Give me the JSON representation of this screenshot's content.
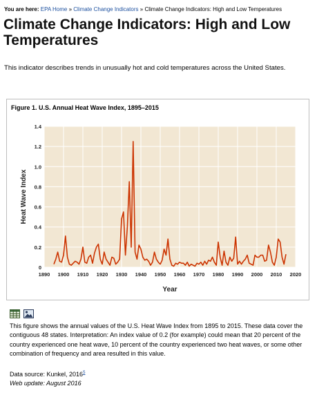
{
  "breadcrumb": {
    "lead": "You are here:",
    "items": [
      {
        "label": "EPA Home"
      },
      {
        "label": "Climate Change Indicators"
      },
      {
        "label": "Climate Change Indicators: High and Low Temperatures"
      }
    ],
    "separator": "»"
  },
  "page": {
    "title": "Climate Change Indicators: High and Low Temperatures",
    "intro": "This indicator describes trends in unusually hot and cold temperatures across the United States."
  },
  "figure": {
    "caption": "Figure 1. U.S. Annual Heat Wave Index, 1895–2015",
    "tools": [
      {
        "icon": "table-icon"
      },
      {
        "icon": "image-icon"
      }
    ],
    "description": "This figure shows the annual values of the U.S. Heat Wave Index from 1895 to 2015. These data cover the contiguous 48 states. Interpretation: An index value of 0.2 (for example) could mean that 20 percent of the country experienced one heat wave, 10 percent of the country experienced two heat waves, or some other combination of frequency and area resulted in this value.",
    "source_label": "Data source: Kunkel, 2016",
    "source_ref": "5",
    "update": "Web update: August 2016"
  },
  "chart_data": {
    "type": "line",
    "title": "",
    "xlabel": "Year",
    "ylabel": "Heat Wave Index",
    "xlim": [
      1890,
      2020
    ],
    "ylim": [
      0,
      1.4
    ],
    "xticks": [
      1890,
      1900,
      1910,
      1920,
      1930,
      1940,
      1950,
      1960,
      1970,
      1980,
      1990,
      2000,
      2010,
      2020
    ],
    "yticks": [
      0,
      0.2,
      0.4,
      0.6,
      0.8,
      1.0,
      1.2,
      1.4
    ],
    "ytick_labels": [
      "0",
      "0.2",
      "0.4",
      "0.6",
      "0.8",
      "1.0",
      "1.2",
      "1.4"
    ],
    "grid": true,
    "colors": {
      "line": "#cc3300",
      "plot_bg": "#f2e7d3",
      "grid": "#ffffff",
      "axis_text": "#222222"
    },
    "series": [
      {
        "x": [
          1895,
          1896,
          1897,
          1898,
          1899,
          1900,
          1901,
          1902,
          1903,
          1904,
          1905,
          1906,
          1907,
          1908,
          1909,
          1910,
          1911,
          1912,
          1913,
          1914,
          1915,
          1916,
          1917,
          1918,
          1919,
          1920,
          1921,
          1922,
          1923,
          1924,
          1925,
          1926,
          1927,
          1928,
          1929,
          1930,
          1931,
          1932,
          1933,
          1934,
          1935,
          1936,
          1937,
          1938,
          1939,
          1940,
          1941,
          1942,
          1943,
          1944,
          1945,
          1946,
          1947,
          1948,
          1949,
          1950,
          1951,
          1952,
          1953,
          1954,
          1955,
          1956,
          1957,
          1958,
          1959,
          1960,
          1961,
          1962,
          1963,
          1964,
          1965,
          1966,
          1967,
          1968,
          1969,
          1970,
          1971,
          1972,
          1973,
          1974,
          1975,
          1976,
          1977,
          1978,
          1979,
          1980,
          1981,
          1982,
          1983,
          1984,
          1985,
          1986,
          1987,
          1988,
          1989,
          1990,
          1991,
          1992,
          1993,
          1994,
          1995,
          1996,
          1997,
          1998,
          1999,
          2000,
          2001,
          2002,
          2003,
          2004,
          2005,
          2006,
          2007,
          2008,
          2009,
          2010,
          2011,
          2012,
          2013,
          2014,
          2015
        ],
        "values": [
          0.03,
          0.08,
          0.15,
          0.06,
          0.05,
          0.12,
          0.31,
          0.1,
          0.03,
          0.02,
          0.04,
          0.06,
          0.05,
          0.03,
          0.08,
          0.2,
          0.05,
          0.04,
          0.1,
          0.12,
          0.04,
          0.14,
          0.2,
          0.23,
          0.08,
          0.03,
          0.15,
          0.08,
          0.05,
          0.02,
          0.1,
          0.09,
          0.03,
          0.05,
          0.08,
          0.48,
          0.55,
          0.12,
          0.4,
          0.85,
          0.2,
          1.25,
          0.15,
          0.08,
          0.22,
          0.18,
          0.1,
          0.07,
          0.08,
          0.06,
          0.02,
          0.05,
          0.15,
          0.08,
          0.05,
          0.03,
          0.07,
          0.18,
          0.12,
          0.28,
          0.08,
          0.02,
          0.01,
          0.04,
          0.03,
          0.05,
          0.04,
          0.04,
          0.02,
          0.05,
          0.01,
          0.03,
          0.02,
          0.01,
          0.04,
          0.03,
          0.05,
          0.02,
          0.06,
          0.03,
          0.07,
          0.06,
          0.1,
          0.05,
          0.02,
          0.25,
          0.1,
          0.02,
          0.16,
          0.05,
          0.02,
          0.1,
          0.06,
          0.09,
          0.3,
          0.03,
          0.06,
          0.03,
          0.06,
          0.08,
          0.12,
          0.04,
          0.03,
          0.02,
          0.12,
          0.1,
          0.1,
          0.12,
          0.12,
          0.06,
          0.07,
          0.22,
          0.15,
          0.05,
          0.02,
          0.1,
          0.28,
          0.25,
          0.1,
          0.03,
          0.13
        ]
      }
    ]
  }
}
